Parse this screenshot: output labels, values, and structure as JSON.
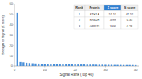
{
  "chart_data": {
    "type": "bar",
    "x_label": "Signal Rank (Top 40)",
    "y_label": "Strength of Signal (Z score)",
    "x": [
      1,
      2,
      3,
      4,
      5,
      6,
      7,
      8,
      9,
      10,
      11,
      12,
      13,
      14,
      15,
      16,
      17,
      18,
      19,
      20,
      21,
      22,
      23,
      24,
      25,
      26,
      27,
      28,
      29,
      30,
      31,
      32,
      33,
      34,
      35,
      36,
      37,
      38,
      39,
      40
    ],
    "values": [
      51.51,
      3.99,
      3.66,
      3.2,
      2.9,
      2.7,
      2.5,
      2.4,
      2.3,
      2.2,
      2.1,
      2.0,
      1.9,
      1.9,
      1.8,
      1.8,
      1.7,
      1.7,
      1.6,
      1.6,
      1.5,
      1.5,
      1.5,
      1.4,
      1.4,
      1.4,
      1.3,
      1.3,
      1.3,
      1.2,
      1.2,
      1.2,
      1.1,
      1.1,
      1.1,
      1.0,
      1.0,
      1.0,
      1.0,
      0.9
    ],
    "color": "#4a90d9",
    "xlim": [
      0,
      41
    ],
    "xticks": [
      0,
      10,
      20,
      30,
      40
    ],
    "ylim": [
      0,
      60
    ],
    "yticks": [
      0,
      10,
      20,
      30,
      40,
      50,
      60
    ],
    "grid": false,
    "table": {
      "columns": [
        "Rank",
        "Protein",
        "Z score",
        "S score"
      ],
      "rows": [
        [
          1,
          "FTH1A",
          51.51,
          47.52
        ],
        [
          2,
          "KRB2H",
          3.99,
          0.33
        ],
        [
          3,
          "GPR73",
          3.66,
          0.28
        ]
      ]
    }
  }
}
